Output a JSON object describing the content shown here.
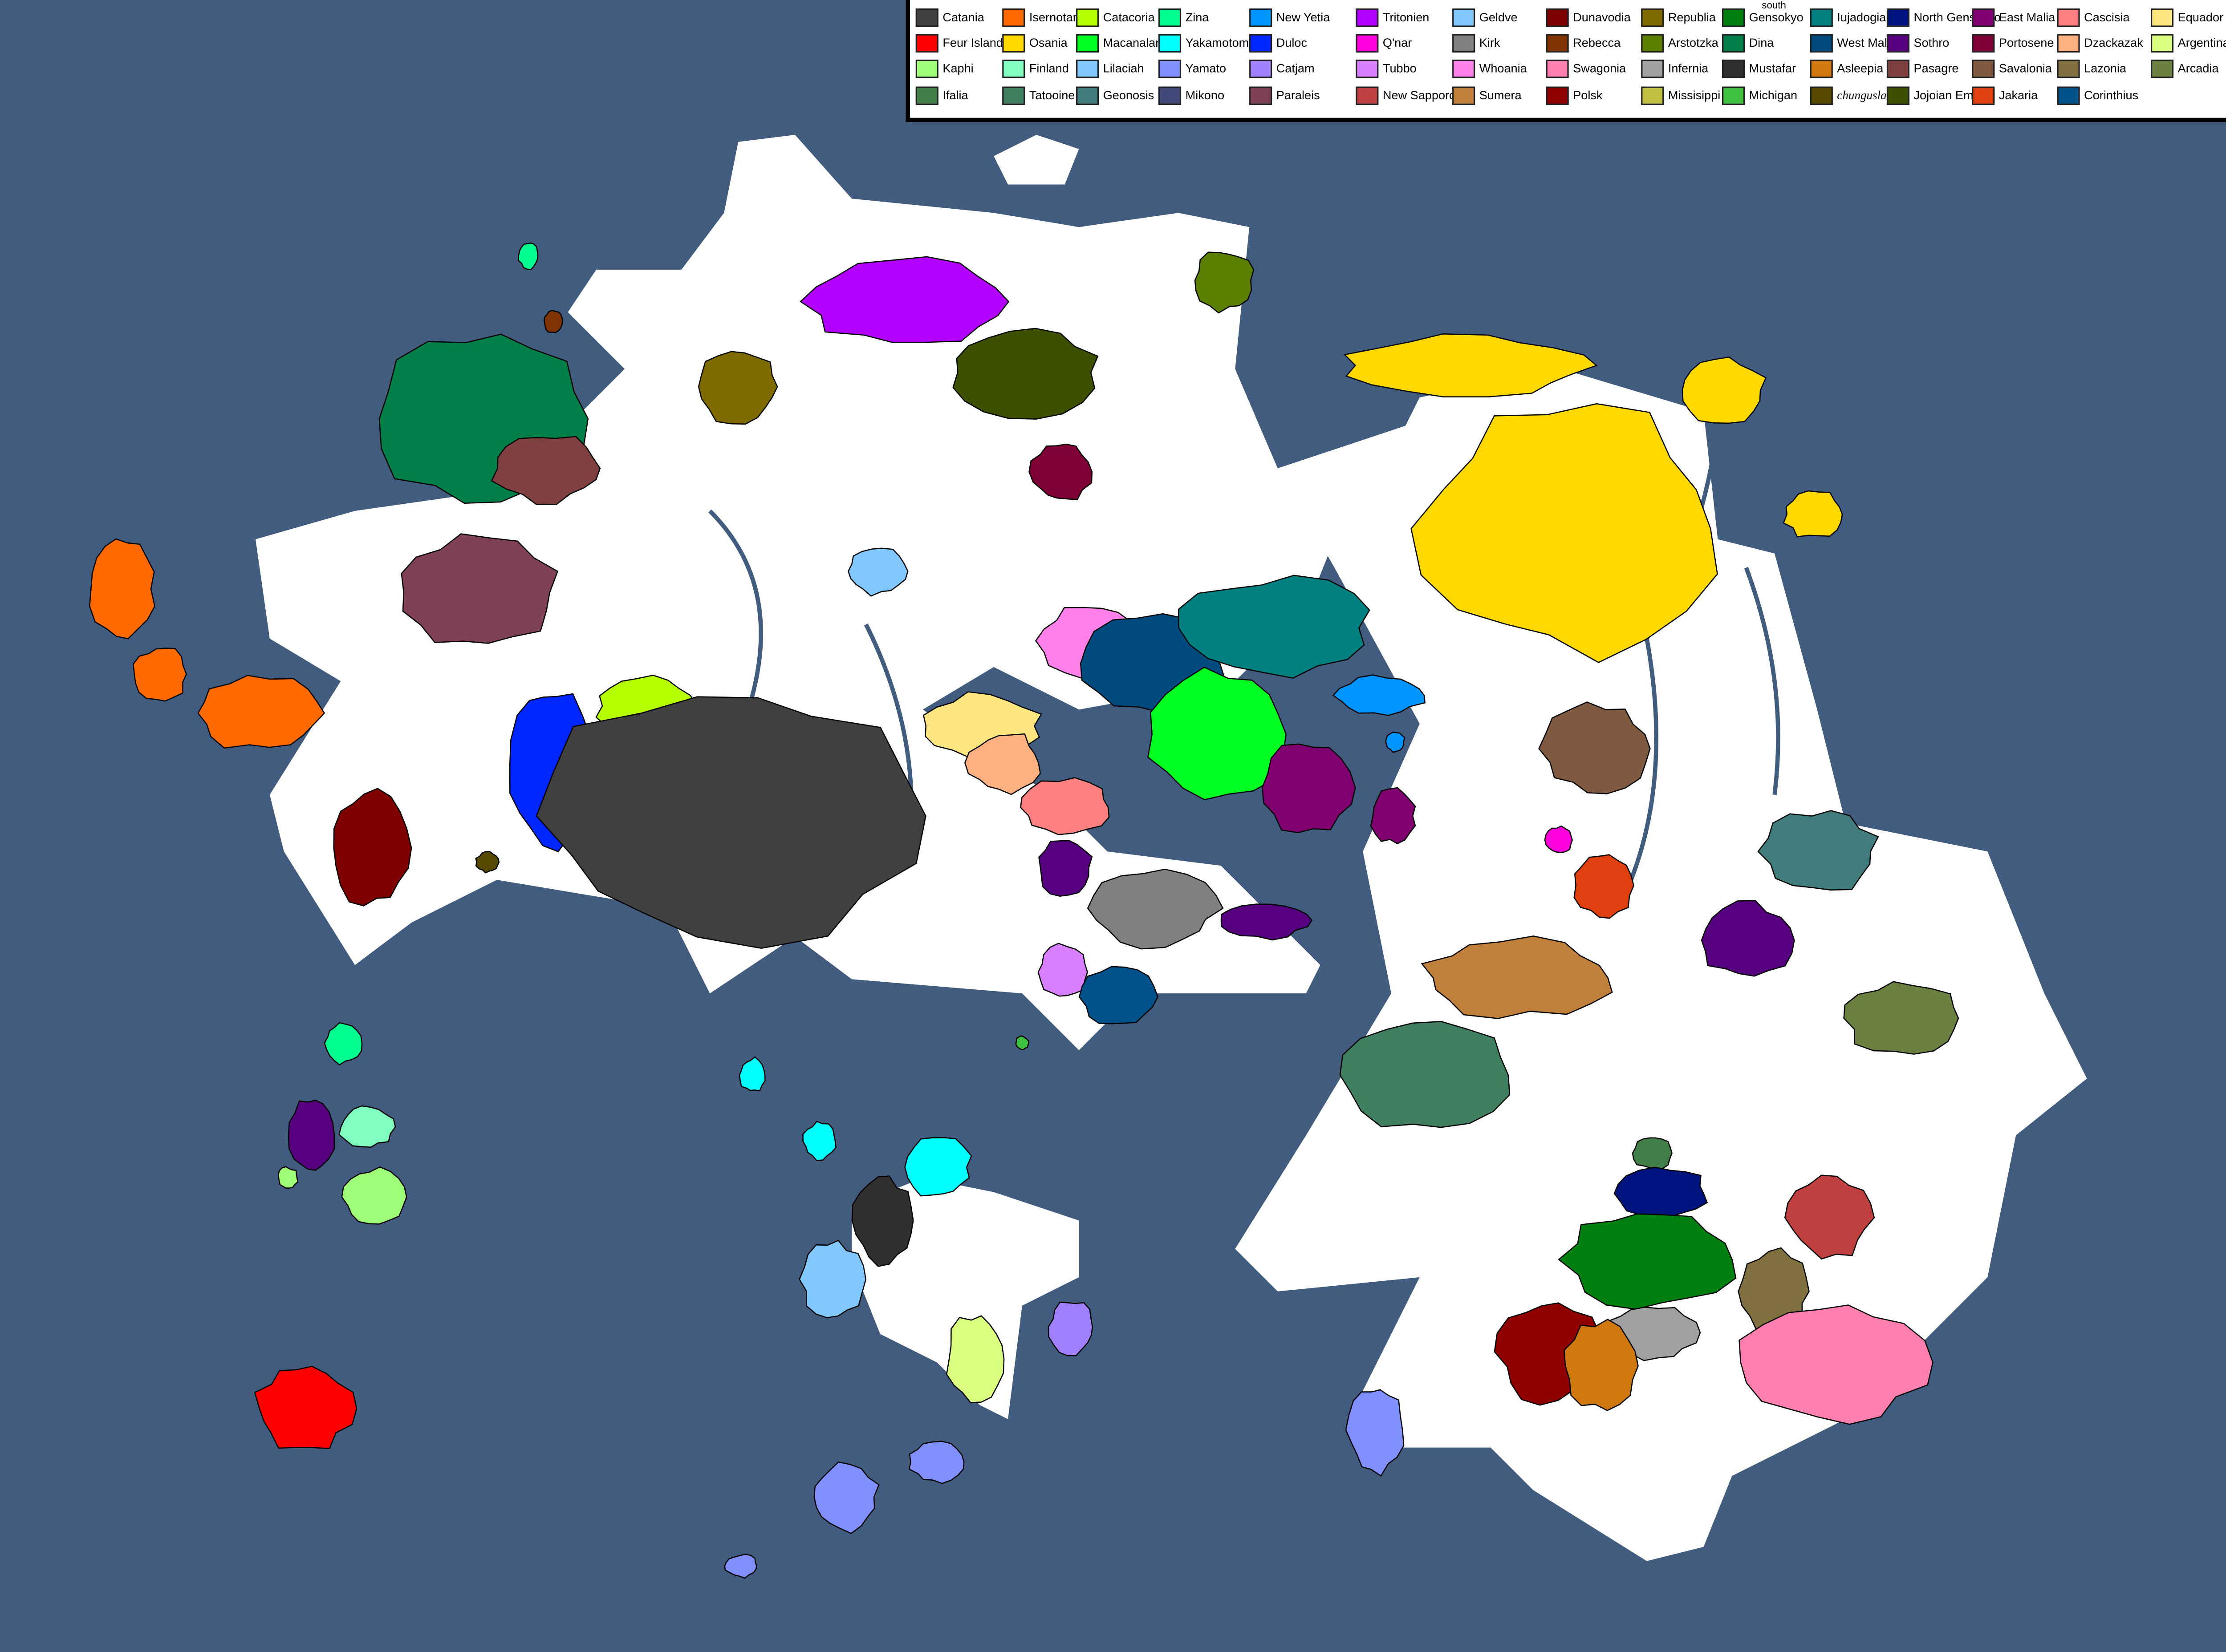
{
  "map": {
    "sea_color": "#425c80",
    "land_color": "#ffffff",
    "border_color": "#000000"
  },
  "legend": {
    "columns": [
      [
        {
          "name": "Catania",
          "color": "#404040"
        },
        {
          "name": "Feur Island",
          "color": "#ff0000"
        },
        {
          "name": "Kaphi",
          "color": "#a0ff78"
        },
        {
          "name": "Ifalia",
          "color": "#408048"
        }
      ],
      [
        {
          "name": "Isernotaria",
          "color": "#ff6a00"
        },
        {
          "name": "Osania",
          "color": "#ffd800"
        },
        {
          "name": "Finland",
          "color": "#80ffc0"
        },
        {
          "name": "Tatooine",
          "color": "#408060"
        }
      ],
      [
        {
          "name": "Catacoria",
          "color": "#b6ff00"
        },
        {
          "name": "Macanaland",
          "color": "#00ff21"
        },
        {
          "name": "Lilaciah",
          "color": "#80c8ff"
        },
        {
          "name": "Geonosis",
          "color": "#407c7c"
        }
      ],
      [
        {
          "name": "Zina",
          "color": "#00ff90"
        },
        {
          "name": "Yakamotomoto",
          "color": "#00ffff"
        },
        {
          "name": "Yamato",
          "color": "#8090ff"
        },
        {
          "name": "Mikono",
          "color": "#404878"
        }
      ],
      [
        {
          "name": "New Yetia",
          "color": "#0094ff"
        },
        {
          "name": "Duloc",
          "color": "#0026ff"
        },
        {
          "name": "Catjam",
          "color": "#a080ff"
        },
        {
          "name": "Paraleis",
          "color": "#804058"
        }
      ],
      [
        {
          "name": "Tritonien",
          "color": "#b200ff"
        },
        {
          "name": "Q'nar",
          "color": "#ff00dc"
        },
        {
          "name": "Tubbo",
          "color": "#d880ff"
        },
        {
          "name": "New Sapporo",
          "color": "#c04040"
        }
      ],
      [
        {
          "name": "Geldve",
          "color": "#80c8ff"
        },
        {
          "name": "Kirk",
          "color": "#808080"
        },
        {
          "name": "Whoania",
          "color": "#ff80e8"
        },
        {
          "name": "Sumera",
          "color": "#c0803c"
        }
      ],
      [
        {
          "name": "Dunavodia",
          "color": "#7f0000"
        },
        {
          "name": "Rebecca",
          "color": "#7f3300"
        },
        {
          "name": "Swagonia",
          "color": "#ff80b0"
        },
        {
          "name": "Polsk",
          "color": "#900000"
        }
      ],
      [
        {
          "name": "Republia",
          "color": "#7f6a00"
        },
        {
          "name": "Arstotzka",
          "color": "#5b7f00"
        },
        {
          "name": "Infernia",
          "color": "#a0a0a0"
        },
        {
          "name": "Missisippi",
          "color": "#c0c040"
        }
      ],
      [
        {
          "name": "Gensokyo",
          "color": "#008010"
        },
        {
          "name": "Dina",
          "color": "#008048"
        },
        {
          "name": "Mustafar",
          "color": "#303030"
        },
        {
          "name": "Michigan",
          "color": "#40c040"
        }
      ],
      [
        {
          "name": "Iujadogia",
          "color": "#008080"
        },
        {
          "name": "West Malia",
          "color": "#004a7f"
        },
        {
          "name": "Asleepia",
          "color": "#d07810"
        },
        {
          "name": "chungusland",
          "color": "#574800"
        }
      ],
      [
        {
          "name": "North Gensokyo",
          "color": "#00147f"
        },
        {
          "name": "Sothro",
          "color": "#57007f"
        },
        {
          "name": "Pasagre",
          "color": "#804040"
        },
        {
          "name": "Jojoian Empire",
          "color": "#3c5000"
        }
      ],
      [
        {
          "name": "East Malia",
          "color": "#7f006e"
        },
        {
          "name": "Portosene",
          "color": "#7f0037"
        },
        {
          "name": "Savalonia",
          "color": "#7f5a40"
        },
        {
          "name": "Jakaria",
          "color": "#e04010"
        }
      ],
      [
        {
          "name": "Cascisia",
          "color": "#ff8080"
        },
        {
          "name": "Dzackazak",
          "color": "#ffb080"
        },
        {
          "name": "Lazonia",
          "color": "#807040"
        },
        {
          "name": "Corinthius",
          "color": "#00508a"
        }
      ],
      [
        {
          "name": "Equador",
          "color": "#ffe680"
        },
        {
          "name": "Argentina",
          "color": "#d8ff80"
        },
        {
          "name": "Arcadia",
          "color": "#6a8040"
        }
      ]
    ],
    "gensokyo_prefix": "south"
  }
}
